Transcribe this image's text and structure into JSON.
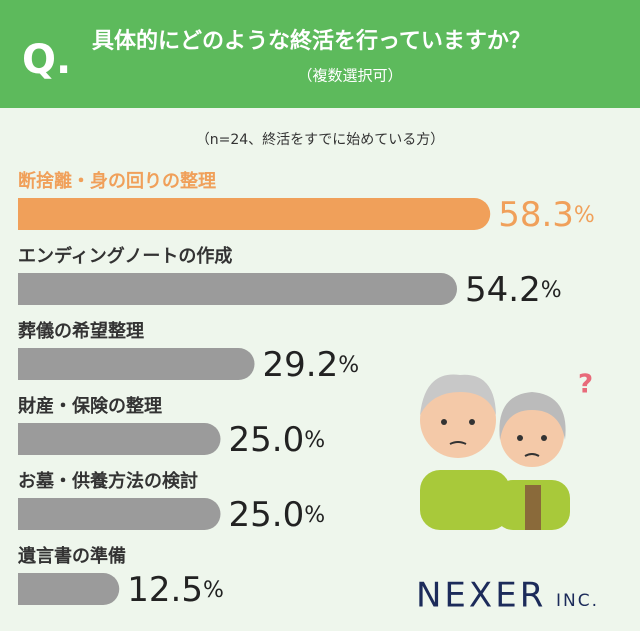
{
  "chart_data": {
    "type": "bar",
    "orientation": "horizontal",
    "badge": "Q.",
    "title": "具体的にどのような終活を行っていますか？",
    "subtitle": "（複数選択可）",
    "note": "（n=24、終活をすでに始めている方）",
    "categories": [
      "断捨離・身の回りの整理",
      "エンディングノートの作成",
      "葬儀の希望整理",
      "財産・保険の整理",
      "お墓・供養方法の検討",
      "遺言書の準備"
    ],
    "values": [
      58.3,
      54.2,
      29.2,
      25,
      25,
      12.5
    ],
    "value_labels": [
      "58.3",
      "54.2",
      "29.2",
      "25.0",
      "25.0",
      "12.5"
    ],
    "unit": "%",
    "colors": [
      "#f0a05a",
      "#9b9b9b",
      "#9b9b9b",
      "#9b9b9b",
      "#9b9b9b",
      "#9b9b9b"
    ],
    "brand": "NEXER",
    "brand_suffix": "INC."
  }
}
